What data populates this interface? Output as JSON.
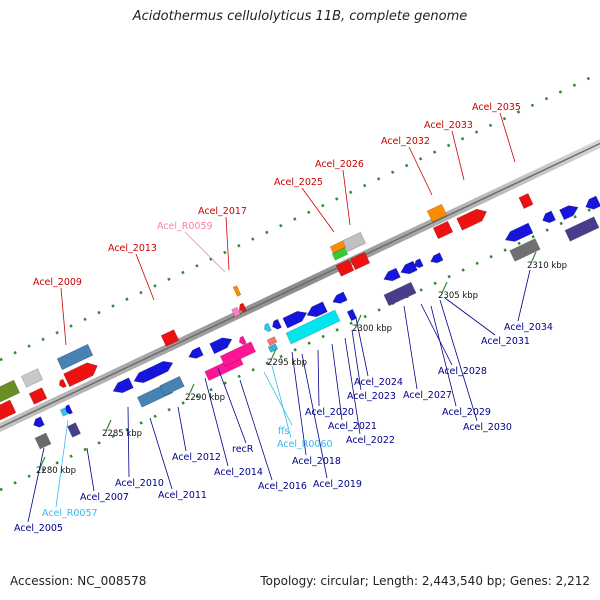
{
  "title": "Acidothermus cellulolyticus 11B, complete genome",
  "footer": {
    "accession": "Accession: NC_008578",
    "summary": "Topology: circular; Length: 2,443,540 bp; Genes: 2,212"
  },
  "colors": {
    "axis": "#9a9a9a",
    "gene_label_top": "#cc0000",
    "rna_label_top": "#ff80a0",
    "gene_label_bottom": "#00008b",
    "rna_label_bottom": "#33bbee",
    "tick_green": "#2e8b2e"
  },
  "ticks": [
    "2280 kbp",
    "2285 kbp",
    "2290 kbp",
    "2295 kbp",
    "2300 kbp",
    "2305 kbp",
    "2310 kbp"
  ],
  "top_labels": [
    "Acel_2009",
    "Acel_2013",
    "Acel_R0059",
    "Acel_2017",
    "Acel_2025",
    "Acel_2026",
    "Acel_2032",
    "Acel_2033",
    "Acel_2035"
  ],
  "bottom_labels": [
    "Acel_2005",
    "Acel_R0057",
    "Acel_2007",
    "Acel_2010",
    "Acel_2011",
    "Acel_2012",
    "recR",
    "Acel_2014",
    "Acel_2016",
    "ffs",
    "Acel_R0060",
    "Acel_2018",
    "Acel_2019",
    "Acel_2020",
    "Acel_2021",
    "Acel_2022",
    "Acel_2023",
    "Acel_2024",
    "Acel_2027",
    "Acel_2028",
    "Acel_2029",
    "Acel_2030",
    "Acel_2031",
    "Acel_2034"
  ]
}
